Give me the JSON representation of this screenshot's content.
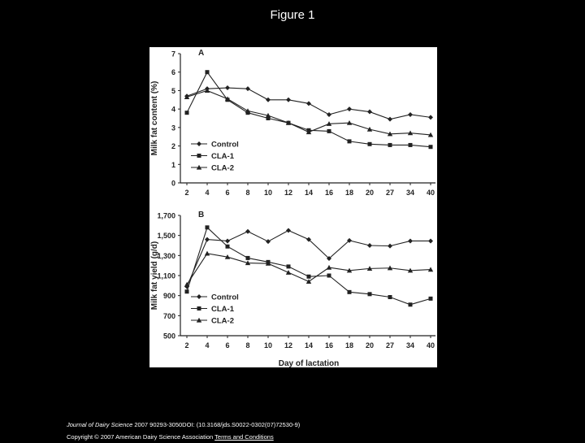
{
  "slide": {
    "title": "Figure 1"
  },
  "colors": {
    "background": "#000000",
    "panel": "#ffffff",
    "ink": "#222222",
    "text": "#ffffff"
  },
  "citation": {
    "journal": "Journal of Dairy Science",
    "rest_line1": " 2007 90293-3050DOI: (10.3168/jds.S0022-0302(07)72530-9)",
    "line2_prefix": "Copyright © 2007 American Dairy Science Association ",
    "terms_link": "Terms and Conditions"
  },
  "chart_data": [
    {
      "type": "line",
      "panel_label": "A",
      "ylabel": "Milk fat content (%)",
      "xlabel": "",
      "categories": [
        "2",
        "4",
        "6",
        "8",
        "10",
        "12",
        "14",
        "16",
        "18",
        "20",
        "27",
        "34",
        "40"
      ],
      "ylim": [
        0,
        7
      ],
      "yticks": [
        "0",
        "1",
        "2",
        "3",
        "4",
        "5",
        "6",
        "7"
      ],
      "legend_position": "bottom-left",
      "series": [
        {
          "name": "Control",
          "marker": "diamond",
          "values": [
            4.7,
            5.1,
            5.15,
            5.1,
            4.5,
            4.5,
            4.3,
            3.7,
            4.0,
            3.85,
            3.45,
            3.7,
            3.55
          ]
        },
        {
          "name": "CLA-1",
          "marker": "square",
          "values": [
            3.8,
            6.0,
            4.5,
            3.8,
            3.5,
            3.25,
            2.85,
            2.8,
            2.25,
            2.1,
            2.05,
            2.05,
            1.95
          ]
        },
        {
          "name": "CLA-2",
          "marker": "triangle",
          "values": [
            4.65,
            5.0,
            4.55,
            3.9,
            3.65,
            3.25,
            2.75,
            3.2,
            3.25,
            2.9,
            2.65,
            2.7,
            2.6
          ]
        }
      ]
    },
    {
      "type": "line",
      "panel_label": "B",
      "ylabel": "Milk fat yield (g/d)",
      "xlabel": "Day of lactation",
      "categories": [
        "2",
        "4",
        "6",
        "8",
        "10",
        "12",
        "14",
        "16",
        "18",
        "20",
        "27",
        "34",
        "40"
      ],
      "ylim": [
        500,
        1700
      ],
      "yticks": [
        "500",
        "700",
        "900",
        "1,100",
        "1,300",
        "1,500",
        "1,700"
      ],
      "legend_position": "bottom-left",
      "series": [
        {
          "name": "Control",
          "marker": "diamond",
          "values": [
            990,
            1460,
            1445,
            1540,
            1440,
            1550,
            1460,
            1270,
            1450,
            1400,
            1395,
            1445,
            1445
          ]
        },
        {
          "name": "CLA-1",
          "marker": "square",
          "values": [
            940,
            1580,
            1390,
            1275,
            1235,
            1190,
            1090,
            1100,
            935,
            915,
            885,
            810,
            870
          ]
        },
        {
          "name": "CLA-2",
          "marker": "triangle",
          "values": [
            1010,
            1320,
            1285,
            1225,
            1220,
            1130,
            1040,
            1180,
            1150,
            1170,
            1175,
            1150,
            1160
          ]
        }
      ]
    }
  ]
}
